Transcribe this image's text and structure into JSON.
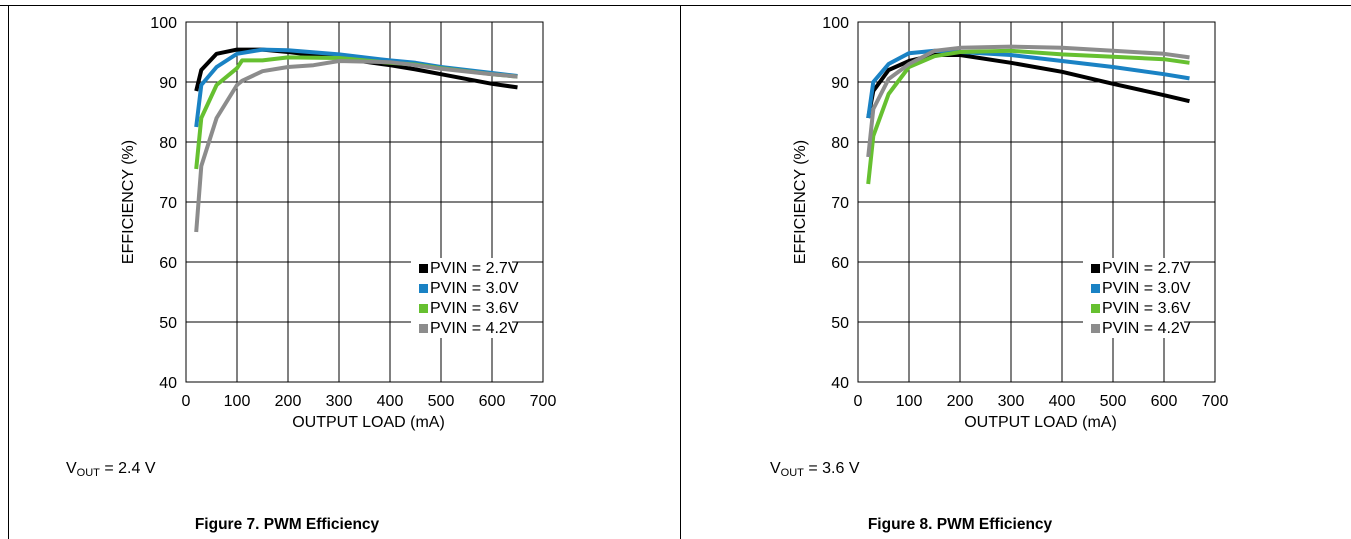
{
  "panels": [
    {
      "caption": "Figure 7. PWM Efficiency",
      "vout": {
        "prefix": "V",
        "sub": "OUT",
        "suffix": " = 2.4 V"
      }
    },
    {
      "caption": "Figure 8. PWM Efficiency",
      "vout": {
        "prefix": "V",
        "sub": "OUT",
        "suffix": " = 3.6 V"
      }
    }
  ],
  "chart_data": [
    {
      "type": "line",
      "title": "Figure 7. PWM Efficiency",
      "xlabel": "OUTPUT LOAD (mA)",
      "ylabel": "EFFICIENCY (%)",
      "xlim": [
        0,
        700
      ],
      "ylim": [
        40,
        100
      ],
      "xticks": [
        0,
        100,
        200,
        300,
        400,
        500,
        600,
        700
      ],
      "yticks": [
        40,
        50,
        60,
        70,
        80,
        90,
        100
      ],
      "grid": true,
      "legend_position": "bottom-right",
      "series": [
        {
          "name": "PVIN = 2.7V",
          "color": "#000000",
          "points": [
            [
              20,
              88.5
            ],
            [
              30,
              92
            ],
            [
              60,
              94.7
            ],
            [
              100,
              95.4
            ],
            [
              150,
              95.4
            ],
            [
              200,
              95.0
            ],
            [
              300,
              94.0
            ],
            [
              400,
              92.8
            ],
            [
              450,
              92.1
            ],
            [
              500,
              91.3
            ],
            [
              600,
              89.7
            ],
            [
              650,
              89.1
            ]
          ]
        },
        {
          "name": "PVIN = 3.0V",
          "color": "#1a82c4",
          "points": [
            [
              20,
              82.5
            ],
            [
              30,
              89.5
            ],
            [
              60,
              92.5
            ],
            [
              100,
              94.7
            ],
            [
              150,
              95.4
            ],
            [
              200,
              95.3
            ],
            [
              300,
              94.6
            ],
            [
              400,
              93.6
            ],
            [
              450,
              93.2
            ],
            [
              500,
              92.5
            ],
            [
              600,
              91.5
            ],
            [
              650,
              91.0
            ]
          ]
        },
        {
          "name": "PVIN = 3.6V",
          "color": "#66c030",
          "points": [
            [
              20,
              75.5
            ],
            [
              30,
              84
            ],
            [
              60,
              89.5
            ],
            [
              100,
              92.3
            ],
            [
              110,
              93.6
            ],
            [
              150,
              93.6
            ],
            [
              200,
              94.1
            ],
            [
              300,
              94.0
            ],
            [
              400,
              93.2
            ],
            [
              450,
              92.9
            ],
            [
              500,
              92.3
            ],
            [
              600,
              91.3
            ],
            [
              650,
              90.9
            ]
          ]
        },
        {
          "name": "PVIN = 4.2V",
          "color": "#8c8c8c",
          "points": [
            [
              20,
              65
            ],
            [
              30,
              76
            ],
            [
              60,
              84
            ],
            [
              100,
              89.5
            ],
            [
              110,
              90.2
            ],
            [
              150,
              91.8
            ],
            [
              200,
              92.5
            ],
            [
              250,
              92.8
            ],
            [
              300,
              93.5
            ],
            [
              400,
              93.3
            ],
            [
              450,
              92.8
            ],
            [
              500,
              92.2
            ],
            [
              600,
              91.3
            ],
            [
              650,
              90.9
            ]
          ]
        }
      ]
    },
    {
      "type": "line",
      "title": "Figure 8. PWM Efficiency",
      "xlabel": "OUTPUT LOAD (mA)",
      "ylabel": "EFFICIENCY (%)",
      "xlim": [
        0,
        700
      ],
      "ylim": [
        40,
        100
      ],
      "xticks": [
        0,
        100,
        200,
        300,
        400,
        500,
        600,
        700
      ],
      "yticks": [
        40,
        50,
        60,
        70,
        80,
        90,
        100
      ],
      "grid": true,
      "legend_position": "bottom-right",
      "series": [
        {
          "name": "PVIN = 2.7V",
          "color": "#000000",
          "points": [
            [
              20,
              84
            ],
            [
              30,
              88.5
            ],
            [
              60,
              92
            ],
            [
              100,
              93.5
            ],
            [
              150,
              94.5
            ],
            [
              200,
              94.5
            ],
            [
              300,
              93.2
            ],
            [
              400,
              91.7
            ],
            [
              500,
              89.7
            ],
            [
              600,
              87.8
            ],
            [
              650,
              86.8
            ]
          ]
        },
        {
          "name": "PVIN = 3.0V",
          "color": "#1a82c4",
          "points": [
            [
              20,
              84
            ],
            [
              30,
              90
            ],
            [
              60,
              93
            ],
            [
              100,
              94.8
            ],
            [
              150,
              95.2
            ],
            [
              200,
              95.0
            ],
            [
              300,
              94.5
            ],
            [
              400,
              93.5
            ],
            [
              500,
              92.5
            ],
            [
              600,
              91.3
            ],
            [
              650,
              90.6
            ]
          ]
        },
        {
          "name": "PVIN = 3.6V",
          "color": "#66c030",
          "points": [
            [
              20,
              73
            ],
            [
              30,
              81
            ],
            [
              60,
              88
            ],
            [
              100,
              92.5
            ],
            [
              150,
              94.3
            ],
            [
              200,
              95.0
            ],
            [
              300,
              95.2
            ],
            [
              400,
              94.6
            ],
            [
              500,
              94.2
            ],
            [
              600,
              93.8
            ],
            [
              650,
              93.2
            ]
          ]
        },
        {
          "name": "PVIN = 4.2V",
          "color": "#8c8c8c",
          "points": [
            [
              20,
              77.5
            ],
            [
              30,
              85.5
            ],
            [
              60,
              90.5
            ],
            [
              100,
              93.0
            ],
            [
              150,
              95.2
            ],
            [
              200,
              95.7
            ],
            [
              300,
              95.9
            ],
            [
              400,
              95.7
            ],
            [
              500,
              95.2
            ],
            [
              600,
              94.7
            ],
            [
              650,
              94.1
            ]
          ]
        }
      ]
    }
  ]
}
